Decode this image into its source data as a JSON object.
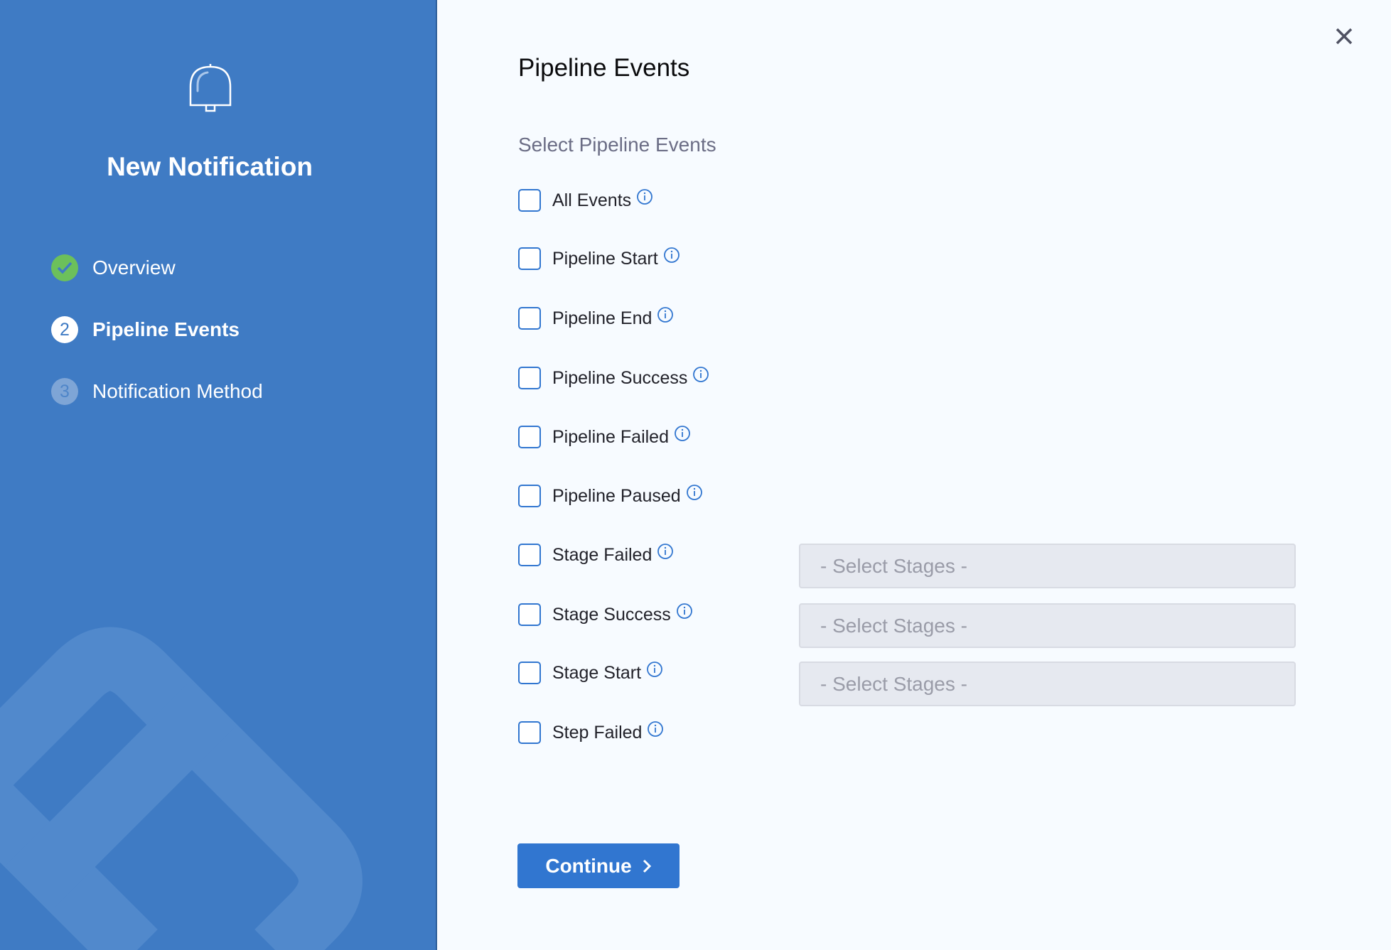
{
  "sidebar": {
    "title": "New Notification",
    "steps": [
      {
        "number": "✓",
        "label": "Overview",
        "state": "completed"
      },
      {
        "number": "2",
        "label": "Pipeline Events",
        "state": "active"
      },
      {
        "number": "3",
        "label": "Notification Method",
        "state": "pending"
      }
    ]
  },
  "main": {
    "title": "Pipeline Events",
    "subtitle": "Select Pipeline Events",
    "events": [
      {
        "label": "All Events",
        "checked": false
      },
      {
        "label": "Pipeline Start",
        "checked": false
      },
      {
        "label": "Pipeline End",
        "checked": false
      },
      {
        "label": "Pipeline Success",
        "checked": false
      },
      {
        "label": "Pipeline Failed",
        "checked": false
      },
      {
        "label": "Pipeline Paused",
        "checked": false
      },
      {
        "label": "Stage Failed",
        "checked": false,
        "stage_select": "- Select Stages -"
      },
      {
        "label": "Stage Success",
        "checked": false,
        "stage_select": "- Select Stages -"
      },
      {
        "label": "Stage Start",
        "checked": false,
        "stage_select": "- Select Stages -"
      },
      {
        "label": "Step Failed",
        "checked": false
      }
    ],
    "continue_label": "Continue"
  },
  "colors": {
    "sidebar": "#3f7bc4",
    "primary": "#3176d0",
    "success": "#6cc05b"
  }
}
